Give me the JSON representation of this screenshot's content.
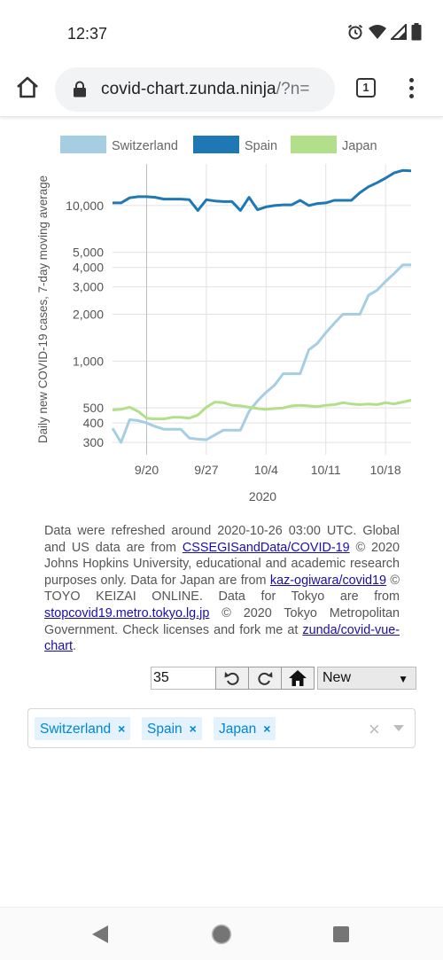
{
  "status_bar": {
    "time": "12:37"
  },
  "browser": {
    "url_host": "covid-chart.zunda.ninja",
    "url_rest": "/?n=",
    "tab_count": "1"
  },
  "chart_data": {
    "type": "line",
    "ylabel": "Daily new COVID-19 cases, 7-day moving average",
    "xlabel": "2020",
    "yscale": "log",
    "ylim": [
      250,
      18500
    ],
    "y_ticks": [
      "300",
      "400",
      "500",
      "1,000",
      "2,000",
      "3,000",
      "4,000",
      "5,000",
      "10,000"
    ],
    "x_ticks": [
      "9/20",
      "9/27",
      "10/4",
      "10/11",
      "10/18"
    ],
    "legend": [
      "Switzerland",
      "Spain",
      "Japan"
    ],
    "legend_position": "top",
    "grid": true,
    "x": [
      "9/16",
      "9/17",
      "9/18",
      "9/19",
      "9/20",
      "9/21",
      "9/22",
      "9/23",
      "9/24",
      "9/25",
      "9/26",
      "9/27",
      "9/28",
      "9/29",
      "9/30",
      "10/1",
      "10/2",
      "10/3",
      "10/4",
      "10/5",
      "10/6",
      "10/7",
      "10/8",
      "10/9",
      "10/10",
      "10/11",
      "10/12",
      "10/13",
      "10/14",
      "10/15",
      "10/16",
      "10/17",
      "10/18",
      "10/19",
      "10/20",
      "10/21"
    ],
    "series": [
      {
        "name": "Switzerland",
        "color": "#a6cee3",
        "values": [
          370,
          300,
          420,
          415,
          400,
          380,
          365,
          365,
          365,
          320,
          315,
          312,
          335,
          360,
          360,
          360,
          475,
          555,
          630,
          700,
          830,
          830,
          830,
          1180,
          1300,
          1520,
          1750,
          2000,
          2000,
          2000,
          2650,
          2850,
          3250,
          3650,
          4150,
          4150
        ]
      },
      {
        "name": "Spain",
        "color": "#1f78b4",
        "values": [
          10400,
          10400,
          11200,
          11400,
          11400,
          11300,
          11000,
          11000,
          11000,
          10900,
          9300,
          10900,
          10700,
          10600,
          10600,
          9300,
          11300,
          9400,
          9800,
          10000,
          10100,
          10100,
          10800,
          10000,
          10300,
          10400,
          10800,
          10800,
          10800,
          12100,
          13200,
          14000,
          15000,
          16200,
          16800,
          16700
        ]
      },
      {
        "name": "Japan",
        "color": "#b2df8a",
        "values": [
          485,
          490,
          505,
          475,
          430,
          425,
          425,
          435,
          435,
          430,
          450,
          505,
          545,
          540,
          520,
          515,
          505,
          495,
          490,
          495,
          500,
          515,
          520,
          515,
          510,
          520,
          525,
          540,
          530,
          525,
          530,
          525,
          540,
          530,
          545,
          560
        ]
      }
    ]
  },
  "notes": {
    "p1": "Data were refreshed around 2020-10-26 03:00 UTC. Global and US data are from ",
    "link1": "CSSEGISandData/COVID-19",
    "p2": " © 2020 Johns Hopkins University, educational and academic research purposes only. Data for Japan are from ",
    "link2": "kaz-ogiwara/covid19",
    "p3": " © TOYO KEIZAI ONLINE. Data for Tokyo are from ",
    "link3": "stopcovid19.metro.tokyo.lg.jp",
    "p4": " © 2020 Tokyo Metropolitan Government. Check licenses and fork me at ",
    "link4": "zunda/covid-vue-chart",
    "p5": "."
  },
  "controls": {
    "days_value": "35",
    "mode_selected": "New"
  },
  "countries": {
    "tags": [
      "Switzerland",
      "Spain",
      "Japan"
    ],
    "remove_glyph": "×",
    "clear_glyph": "×"
  }
}
